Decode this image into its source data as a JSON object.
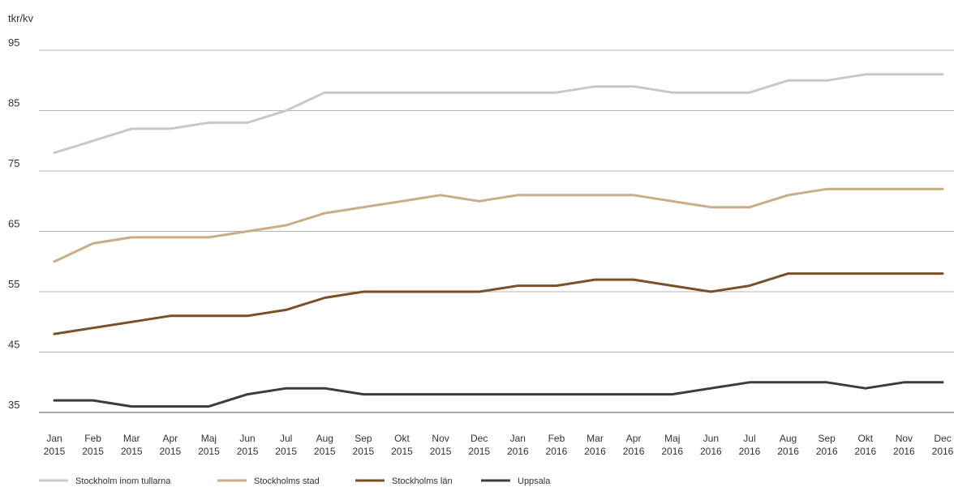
{
  "chart_data": {
    "type": "line",
    "ylabel": "tkr/kv",
    "ylim": [
      35,
      95
    ],
    "yticks": [
      35,
      45,
      55,
      65,
      75,
      85,
      95
    ],
    "grid": true,
    "legend_position": "bottom-left",
    "categories": [
      [
        "Jan",
        "2015"
      ],
      [
        "Feb",
        "2015"
      ],
      [
        "Mar",
        "2015"
      ],
      [
        "Apr",
        "2015"
      ],
      [
        "Maj",
        "2015"
      ],
      [
        "Jun",
        "2015"
      ],
      [
        "Jul",
        "2015"
      ],
      [
        "Aug",
        "2015"
      ],
      [
        "Sep",
        "2015"
      ],
      [
        "Okt",
        "2015"
      ],
      [
        "Nov",
        "2015"
      ],
      [
        "Dec",
        "2015"
      ],
      [
        "Jan",
        "2016"
      ],
      [
        "Feb",
        "2016"
      ],
      [
        "Mar",
        "2016"
      ],
      [
        "Apr",
        "2016"
      ],
      [
        "Maj",
        "2016"
      ],
      [
        "Jun",
        "2016"
      ],
      [
        "Jul",
        "2016"
      ],
      [
        "Aug",
        "2016"
      ],
      [
        "Sep",
        "2016"
      ],
      [
        "Okt",
        "2016"
      ],
      [
        "Nov",
        "2016"
      ],
      [
        "Dec",
        "2016"
      ]
    ],
    "series": [
      {
        "name": "Stockholm inom tullarna",
        "color": "#c8c8c8",
        "values": [
          78,
          80,
          82,
          82,
          83,
          83,
          85,
          88,
          88,
          88,
          88,
          88,
          88,
          88,
          89,
          89,
          88,
          88,
          88,
          90,
          90,
          91,
          91,
          91
        ]
      },
      {
        "name": "Stockholms stad",
        "color": "#c9ad88",
        "values": [
          60,
          63,
          64,
          64,
          64,
          65,
          66,
          68,
          69,
          70,
          71,
          70,
          71,
          71,
          71,
          71,
          70,
          69,
          69,
          71,
          72,
          72,
          72,
          72
        ]
      },
      {
        "name": "Stockholms län",
        "color": "#7a5126",
        "values": [
          48,
          49,
          50,
          51,
          51,
          51,
          52,
          54,
          55,
          55,
          55,
          55,
          56,
          56,
          57,
          57,
          56,
          55,
          56,
          58,
          58,
          58,
          58,
          58
        ]
      },
      {
        "name": "Uppsala",
        "color": "#3c3c3c",
        "values": [
          37,
          37,
          36,
          36,
          36,
          38,
          39,
          39,
          38,
          38,
          38,
          38,
          38,
          38,
          38,
          38,
          38,
          39,
          40,
          40,
          40,
          39,
          40,
          40
        ]
      }
    ]
  }
}
